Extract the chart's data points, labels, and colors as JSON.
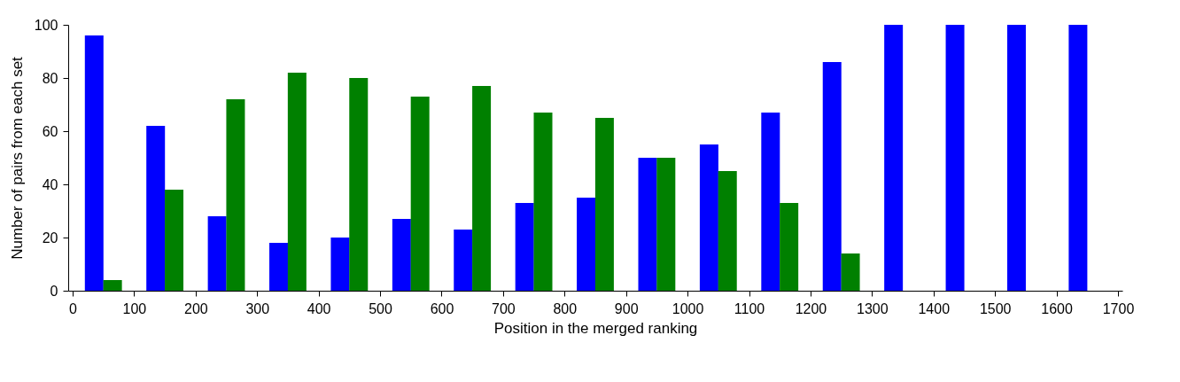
{
  "chart_data": {
    "type": "bar",
    "xlabel": "Position in the merged ranking",
    "ylabel": "Number of pairs from each set",
    "xlim": [
      0,
      1700
    ],
    "xticks": [
      0,
      100,
      200,
      300,
      400,
      500,
      600,
      700,
      800,
      900,
      1000,
      1100,
      1200,
      1300,
      1400,
      1500,
      1600,
      1700
    ],
    "ylim": [
      0,
      100
    ],
    "yticks": [
      0,
      20,
      40,
      60,
      80,
      100
    ],
    "grid": false,
    "legend": false,
    "series": [
      {
        "color": "#0000ff",
        "x": [
          35,
          135,
          235,
          335,
          435,
          535,
          635,
          735,
          835,
          935,
          1035,
          1135,
          1235,
          1335,
          1435,
          1535,
          1635
        ],
        "values": [
          96,
          62,
          28,
          18,
          20,
          27,
          23,
          33,
          35,
          50,
          55,
          67,
          86,
          100,
          100,
          100,
          100
        ]
      },
      {
        "color": "#008000",
        "x": [
          65,
          165,
          265,
          365,
          465,
          565,
          665,
          765,
          865,
          965,
          1065,
          1165,
          1265,
          1365,
          1465,
          1565,
          1665
        ],
        "values": [
          4,
          38,
          72,
          82,
          80,
          73,
          77,
          67,
          65,
          50,
          45,
          33,
          14,
          0,
          0,
          0,
          0
        ]
      }
    ]
  }
}
